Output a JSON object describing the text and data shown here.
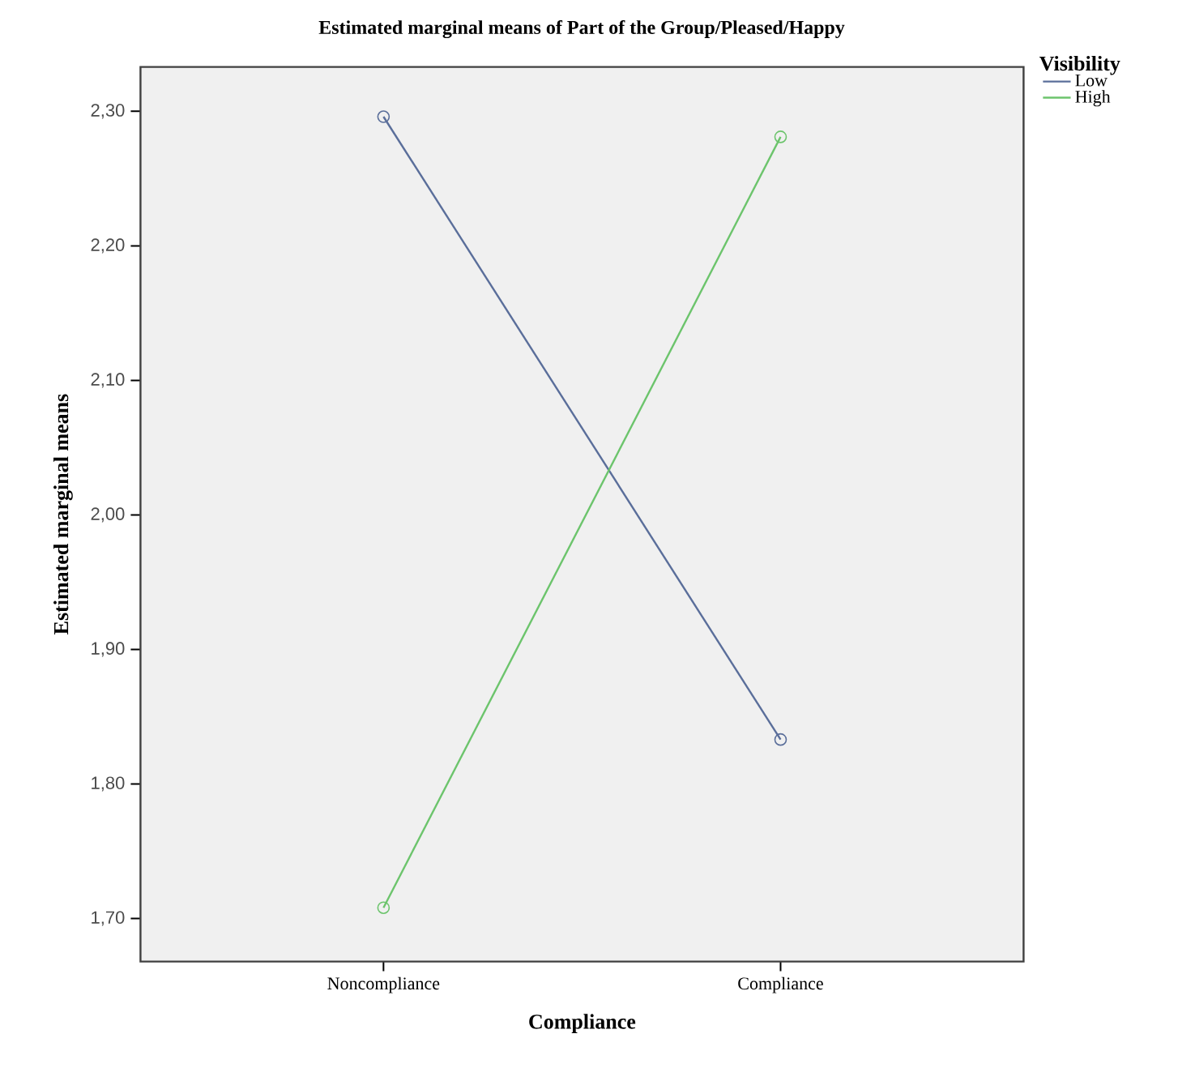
{
  "chart_data": {
    "type": "line",
    "title": "Estimated marginal means of Part of the Group/Pleased/Happy",
    "xlabel": "Compliance",
    "ylabel": "Estimated marginal means",
    "legend_title": "Visibility",
    "categories": [
      "Noncompliance",
      "Compliance"
    ],
    "series": [
      {
        "name": "Low",
        "color": "#5a6e9a",
        "values": [
          2.296,
          1.833
        ]
      },
      {
        "name": "High",
        "color": "#6cc46c",
        "values": [
          1.708,
          2.281
        ]
      }
    ],
    "ylim": [
      1.668,
      2.333
    ],
    "yticks": [
      {
        "value": 1.7,
        "label": "1,70"
      },
      {
        "value": 1.8,
        "label": "1,80"
      },
      {
        "value": 1.9,
        "label": "1,90"
      },
      {
        "value": 2.0,
        "label": "2,00"
      },
      {
        "value": 2.1,
        "label": "2,10"
      },
      {
        "value": 2.2,
        "label": "2,20"
      },
      {
        "value": 2.3,
        "label": "2,30"
      }
    ],
    "marker": "circle",
    "line_style": "solid",
    "legend": "right",
    "grid": false
  }
}
